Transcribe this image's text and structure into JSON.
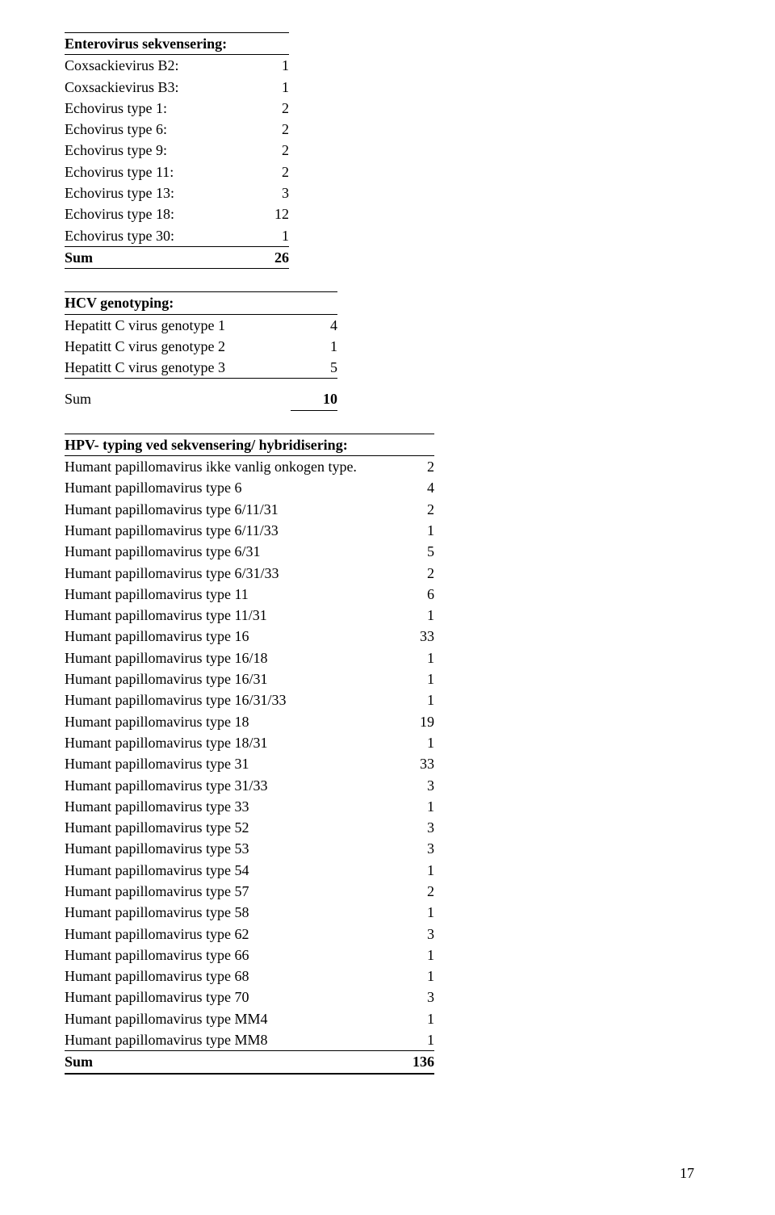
{
  "enterovirus": {
    "title": "Enterovirus sekvensering:",
    "rows": [
      {
        "label": "Coxsackievirus B2:",
        "val": "1"
      },
      {
        "label": "Coxsackievirus B3:",
        "val": "1"
      },
      {
        "label": "Echovirus type 1:",
        "val": "2"
      },
      {
        "label": "Echovirus type 6:",
        "val": "2"
      },
      {
        "label": "Echovirus type 9:",
        "val": "2"
      },
      {
        "label": "Echovirus type 11:",
        "val": "2"
      },
      {
        "label": "Echovirus type 13:",
        "val": "3"
      },
      {
        "label": "Echovirus type 18:",
        "val": "12"
      },
      {
        "label": "Echovirus type 30:",
        "val": "1"
      }
    ],
    "sum_label": "Sum",
    "sum_val": "26"
  },
  "hcv": {
    "title": "HCV genotyping:",
    "rows": [
      {
        "label": "Hepatitt C virus genotype 1",
        "val": "4"
      },
      {
        "label": "Hepatitt C virus genotype 2",
        "val": "1"
      },
      {
        "label": "Hepatitt C virus genotype 3",
        "val": "5"
      }
    ],
    "sum_label": "Sum",
    "sum_val": "10"
  },
  "hpv": {
    "title": "HPV- typing ved sekvensering/ hybridisering:",
    "rows": [
      {
        "label": "Humant papillomavirus ikke vanlig onkogen type.",
        "val": "2"
      },
      {
        "label": "Humant papillomavirus type 6",
        "val": "4"
      },
      {
        "label": "Humant papillomavirus type 6/11/31",
        "val": "2"
      },
      {
        "label": "Humant papillomavirus type 6/11/33",
        "val": "1"
      },
      {
        "label": "Humant papillomavirus type 6/31",
        "val": "5"
      },
      {
        "label": "Humant papillomavirus type 6/31/33",
        "val": "2"
      },
      {
        "label": "Humant papillomavirus type 11",
        "val": "6"
      },
      {
        "label": "Humant papillomavirus type 11/31",
        "val": "1"
      },
      {
        "label": "Humant papillomavirus type 16",
        "val": "33"
      },
      {
        "label": "Humant papillomavirus type 16/18",
        "val": "1"
      },
      {
        "label": "Humant papillomavirus type 16/31",
        "val": "1"
      },
      {
        "label": "Humant papillomavirus type 16/31/33",
        "val": "1"
      },
      {
        "label": "Humant papillomavirus type 18",
        "val": "19"
      },
      {
        "label": "Humant papillomavirus type 18/31",
        "val": "1"
      },
      {
        "label": "Humant papillomavirus type 31",
        "val": "33"
      },
      {
        "label": "Humant papillomavirus type 31/33",
        "val": "3"
      },
      {
        "label": "Humant papillomavirus type 33",
        "val": "1"
      },
      {
        "label": "Humant papillomavirus type 52",
        "val": "3"
      },
      {
        "label": "Humant papillomavirus type 53",
        "val": "3"
      },
      {
        "label": "Humant papillomavirus type 54",
        "val": "1"
      },
      {
        "label": "Humant papillomavirus type 57",
        "val": "2"
      },
      {
        "label": "Humant papillomavirus type 58",
        "val": "1"
      },
      {
        "label": "Humant papillomavirus type 62",
        "val": "3"
      },
      {
        "label": "Humant papillomavirus type 66",
        "val": "1"
      },
      {
        "label": "Humant papillomavirus type 68",
        "val": "1"
      },
      {
        "label": "Humant papillomavirus type 70",
        "val": "3"
      },
      {
        "label": "Humant papillomavirus type MM4",
        "val": "1"
      },
      {
        "label": "Humant papillomavirus type MM8",
        "val": "1"
      }
    ],
    "sum_label": "Sum",
    "sum_val": "136"
  },
  "page_number": "17"
}
